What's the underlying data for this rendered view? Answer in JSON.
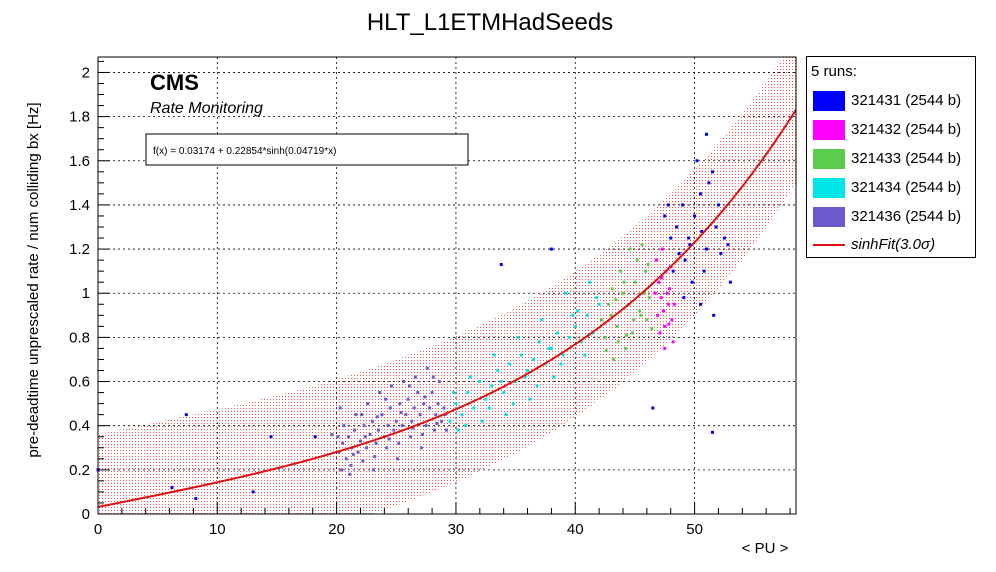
{
  "chart_data": {
    "type": "scatter",
    "title": "HLT_L1ETMHadSeeds",
    "xlabel": "< PU >",
    "ylabel": "pre-deadtime unprescaled rate / num colliding bx [Hz]",
    "xlim": [
      0,
      58.5
    ],
    "ylim": [
      0,
      2.07
    ],
    "xticks": [
      0,
      10,
      20,
      30,
      40,
      50
    ],
    "yticks": [
      0,
      0.2,
      0.4,
      0.6,
      0.8,
      1,
      1.2,
      1.4,
      1.6,
      1.8,
      2
    ],
    "grid": true,
    "brand": "CMS",
    "subtitle": "Rate Monitoring",
    "fit_label": "f(x) = 0.03174 + 0.22854*sinh(0.04719*x)",
    "fit": {
      "a": 0.03174,
      "b": 0.22854,
      "c": 0.04719,
      "color": "#dd1111"
    },
    "band_halfwidth": 0.33,
    "legend": {
      "header": "5 runs:",
      "fit_label": "sinhFit(3.0σ)",
      "position": "right-outside"
    },
    "series": [
      {
        "name": "321431 (2544 b)",
        "color": "#0000ff",
        "points": [
          [
            0,
            0.2
          ],
          [
            7.4,
            0.45
          ],
          [
            8.2,
            0.07
          ],
          [
            6.2,
            0.12
          ],
          [
            13,
            0.1
          ],
          [
            14.5,
            0.35
          ],
          [
            18.2,
            0.35
          ],
          [
            33.8,
            1.13
          ],
          [
            38,
            1.2
          ],
          [
            46.5,
            0.48
          ],
          [
            51.5,
            0.37
          ],
          [
            48.5,
            1.3
          ],
          [
            49,
            1.4
          ],
          [
            49.5,
            1.25
          ],
          [
            50,
            1.35
          ],
          [
            50.5,
            1.45
          ],
          [
            51,
            1.2
          ],
          [
            51.5,
            1.55
          ],
          [
            52,
            1.4
          ],
          [
            51,
            1.72
          ],
          [
            52.5,
            1.25
          ],
          [
            53,
            1.05
          ],
          [
            50.5,
            0.95
          ],
          [
            49.8,
            1.05
          ],
          [
            48,
            1.25
          ],
          [
            47.5,
            1.35
          ],
          [
            48.2,
            1.1
          ],
          [
            49.2,
            1.15
          ],
          [
            50.2,
            1.6
          ],
          [
            51.8,
            1.3
          ],
          [
            52.2,
            1.18
          ],
          [
            50.8,
            1.1
          ],
          [
            49.6,
            1.22
          ],
          [
            48.7,
            1.18
          ],
          [
            47.8,
            1.4
          ],
          [
            51.2,
            1.5
          ],
          [
            52.8,
            1.22
          ],
          [
            50.6,
            1.28
          ],
          [
            49.1,
            0.98
          ],
          [
            51.6,
            0.9
          ]
        ]
      },
      {
        "name": "321432 (2544 b)",
        "color": "#ff00ff",
        "points": [
          [
            46.8,
            1.15
          ],
          [
            47,
            1.05
          ],
          [
            47.2,
            0.98
          ],
          [
            47.4,
            0.92
          ],
          [
            47.5,
            0.85
          ],
          [
            47.6,
            1.1
          ],
          [
            47.8,
            0.95
          ],
          [
            47.9,
            1.02
          ],
          [
            48.1,
            0.88
          ],
          [
            48.2,
            0.78
          ],
          [
            47.3,
            1.2
          ],
          [
            46.9,
            0.9
          ],
          [
            47.7,
            1.0
          ],
          [
            48.0,
            1.12
          ],
          [
            47.1,
            0.82
          ],
          [
            47.5,
            0.75
          ],
          [
            48.3,
            0.95
          ],
          [
            46.7,
            1.0
          ],
          [
            47.85,
            0.86
          ],
          [
            47.25,
            1.07
          ]
        ]
      },
      {
        "name": "321433 (2544 b)",
        "color": "#5ccc4c",
        "points": [
          [
            42.5,
            0.8
          ],
          [
            43,
            0.9
          ],
          [
            43.5,
            0.85
          ],
          [
            44,
            1.0
          ],
          [
            44.5,
            0.95
          ],
          [
            45,
            1.05
          ],
          [
            45.5,
            0.9
          ],
          [
            46,
            0.88
          ],
          [
            44.2,
            0.75
          ],
          [
            43.8,
            1.1
          ],
          [
            45.2,
            1.15
          ],
          [
            44.8,
            0.82
          ],
          [
            42.8,
            0.95
          ],
          [
            43.2,
            0.7
          ],
          [
            46.2,
            0.98
          ],
          [
            45.8,
            1.0
          ],
          [
            44.6,
            1.2
          ],
          [
            43.6,
            0.78
          ],
          [
            42.2,
            0.88
          ],
          [
            45.4,
            0.92
          ],
          [
            46.4,
            0.84
          ],
          [
            44.1,
            1.05
          ],
          [
            43.4,
            0.97
          ],
          [
            45.9,
            1.1
          ],
          [
            42.6,
            0.74
          ],
          [
            44.9,
            0.88
          ],
          [
            43.1,
            1.02
          ],
          [
            46.1,
            1.13
          ],
          [
            44.3,
            0.81
          ],
          [
            45.6,
            1.22
          ]
        ]
      },
      {
        "name": "321434 (2544 b)",
        "color": "#00e6e6",
        "points": [
          [
            29.5,
            0.42
          ],
          [
            30,
            0.5
          ],
          [
            30.5,
            0.45
          ],
          [
            31,
            0.55
          ],
          [
            31.5,
            0.48
          ],
          [
            32,
            0.6
          ],
          [
            32.5,
            0.52
          ],
          [
            33,
            0.58
          ],
          [
            33.5,
            0.65
          ],
          [
            34,
            0.55
          ],
          [
            34.5,
            0.68
          ],
          [
            35,
            0.6
          ],
          [
            35.5,
            0.72
          ],
          [
            36,
            0.65
          ],
          [
            36.5,
            0.7
          ],
          [
            37,
            0.78
          ],
          [
            37.5,
            0.68
          ],
          [
            38,
            0.75
          ],
          [
            38.5,
            0.82
          ],
          [
            39,
            0.72
          ],
          [
            39.5,
            0.8
          ],
          [
            40,
            0.85
          ],
          [
            40.5,
            0.78
          ],
          [
            41,
            0.9
          ],
          [
            41.5,
            0.82
          ],
          [
            42,
            0.95
          ],
          [
            40.2,
            0.92
          ],
          [
            39.2,
            1.0
          ],
          [
            41.2,
            1.05
          ],
          [
            38.2,
            0.62
          ],
          [
            36.2,
            0.52
          ],
          [
            34.2,
            0.45
          ],
          [
            32.2,
            0.42
          ],
          [
            30.2,
            0.38
          ],
          [
            33.2,
            0.72
          ],
          [
            35.2,
            0.8
          ],
          [
            37.2,
            0.88
          ],
          [
            31.2,
            0.62
          ],
          [
            29.8,
            0.55
          ],
          [
            36.8,
            0.58
          ],
          [
            38.8,
            0.68
          ],
          [
            40.8,
            0.72
          ],
          [
            34.8,
            0.5
          ],
          [
            32.8,
            0.48
          ],
          [
            30.8,
            0.4
          ],
          [
            39.8,
            0.9
          ],
          [
            41.8,
            0.98
          ],
          [
            35.8,
            0.62
          ],
          [
            37.8,
            0.75
          ],
          [
            33.8,
            0.6
          ]
        ]
      },
      {
        "name": "321436 (2544 b)",
        "color": "#6a5acd",
        "points": [
          [
            20.2,
            0.28
          ],
          [
            20.5,
            0.32
          ],
          [
            20.8,
            0.25
          ],
          [
            21,
            0.35
          ],
          [
            21.3,
            0.3
          ],
          [
            21.5,
            0.38
          ],
          [
            21.8,
            0.28
          ],
          [
            22,
            0.33
          ],
          [
            22.3,
            0.4
          ],
          [
            22.5,
            0.3
          ],
          [
            22.8,
            0.36
          ],
          [
            23,
            0.42
          ],
          [
            23.3,
            0.32
          ],
          [
            23.5,
            0.38
          ],
          [
            23.8,
            0.45
          ],
          [
            24,
            0.35
          ],
          [
            24.3,
            0.4
          ],
          [
            24.5,
            0.48
          ],
          [
            24.8,
            0.38
          ],
          [
            25,
            0.42
          ],
          [
            25.3,
            0.5
          ],
          [
            25.5,
            0.4
          ],
          [
            25.8,
            0.45
          ],
          [
            26,
            0.52
          ],
          [
            26.3,
            0.42
          ],
          [
            26.5,
            0.48
          ],
          [
            26.8,
            0.55
          ],
          [
            27,
            0.45
          ],
          [
            27.3,
            0.5
          ],
          [
            27.5,
            0.4
          ],
          [
            27.8,
            0.48
          ],
          [
            28,
            0.55
          ],
          [
            28.3,
            0.45
          ],
          [
            28.5,
            0.5
          ],
          [
            28.8,
            0.42
          ],
          [
            29,
            0.48
          ],
          [
            29.2,
            0.38
          ],
          [
            20.4,
            0.2
          ],
          [
            21.2,
            0.22
          ],
          [
            22.2,
            0.24
          ],
          [
            23.2,
            0.26
          ],
          [
            24.2,
            0.3
          ],
          [
            25.2,
            0.32
          ],
          [
            26.2,
            0.35
          ],
          [
            27.2,
            0.36
          ],
          [
            28.2,
            0.38
          ],
          [
            20.6,
            0.4
          ],
          [
            21.6,
            0.45
          ],
          [
            22.6,
            0.5
          ],
          [
            23.6,
            0.55
          ],
          [
            24.6,
            0.58
          ],
          [
            25.6,
            0.6
          ],
          [
            26.6,
            0.62
          ],
          [
            27.6,
            0.66
          ],
          [
            28.6,
            0.6
          ],
          [
            20.1,
            0.35
          ],
          [
            21.1,
            0.18
          ],
          [
            22.1,
            0.45
          ],
          [
            23.1,
            0.2
          ],
          [
            24.1,
            0.52
          ],
          [
            25.1,
            0.25
          ],
          [
            26.1,
            0.58
          ],
          [
            27.1,
            0.3
          ],
          [
            28.1,
            0.62
          ],
          [
            29.1,
            0.45
          ],
          [
            19.6,
            0.36
          ],
          [
            20.3,
            0.48
          ],
          [
            21.4,
            0.27
          ],
          [
            22.4,
            0.35
          ],
          [
            23.4,
            0.44
          ],
          [
            24.4,
            0.34
          ],
          [
            25.4,
            0.46
          ],
          [
            26.4,
            0.39
          ],
          [
            27.4,
            0.53
          ],
          [
            28.4,
            0.41
          ]
        ]
      }
    ]
  }
}
